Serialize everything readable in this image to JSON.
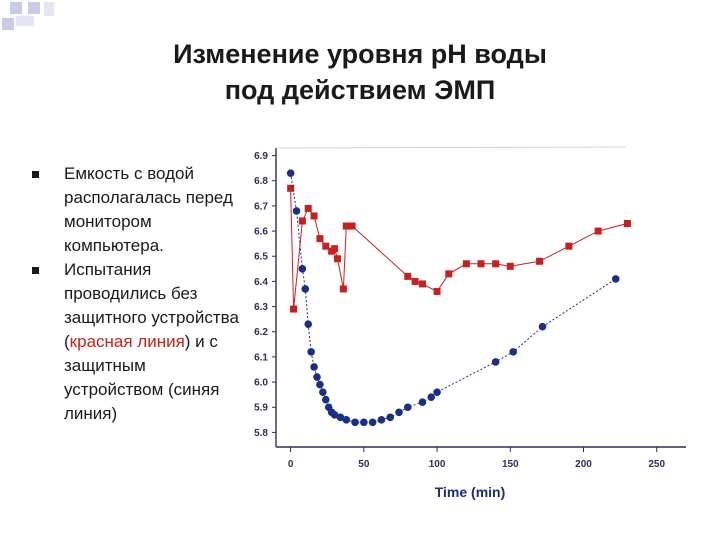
{
  "slide": {
    "title_line1": "Изменение уровня рН воды",
    "title_line2": "под действием ЭМП",
    "bullets": [
      {
        "text": "Емкость с водой располагалась перед монитором компьютера."
      },
      {
        "text_before": "Испытания проводились без защитного устройства (",
        "red_text": "красная линия",
        "text_after": ") и с защитным устройством (синяя линия)"
      }
    ],
    "colors": {
      "red_series": "#c8201e",
      "blue_series": "#1c2f86",
      "accent_text_red": "#cc1f1a"
    }
  },
  "chart_data": {
    "type": "line",
    "xlabel": "Time (min)",
    "ylabel": "",
    "xlim": [
      -10,
      270
    ],
    "ylim": [
      5.75,
      6.93
    ],
    "x_ticks": [
      0,
      50,
      100,
      150,
      200,
      250
    ],
    "y_ticks": [
      5.8,
      5.9,
      6.0,
      6.1,
      6.2,
      6.3,
      6.4,
      6.5,
      6.6,
      6.7,
      6.8,
      6.9
    ],
    "grid": false,
    "series": [
      {
        "color": "red",
        "marker": "square",
        "points": [
          [
            0,
            6.77
          ],
          [
            2,
            6.29
          ],
          [
            8,
            6.64
          ],
          [
            12,
            6.69
          ],
          [
            16,
            6.66
          ],
          [
            20,
            6.57
          ],
          [
            24,
            6.54
          ],
          [
            28,
            6.52
          ],
          [
            30,
            6.53
          ],
          [
            32,
            6.49
          ],
          [
            36,
            6.37
          ],
          [
            38,
            6.62
          ],
          [
            40,
            6.62
          ],
          [
            42,
            6.62
          ],
          [
            80,
            6.42
          ],
          [
            85,
            6.4
          ],
          [
            90,
            6.39
          ],
          [
            100,
            6.36
          ],
          [
            108,
            6.43
          ],
          [
            120,
            6.47
          ],
          [
            130,
            6.47
          ],
          [
            140,
            6.47
          ],
          [
            150,
            6.46
          ],
          [
            170,
            6.48
          ],
          [
            190,
            6.54
          ],
          [
            210,
            6.6
          ],
          [
            230,
            6.63
          ]
        ]
      },
      {
        "color": "blue",
        "marker": "circle",
        "points": [
          [
            0,
            6.83
          ],
          [
            4,
            6.68
          ],
          [
            8,
            6.45
          ],
          [
            10,
            6.37
          ],
          [
            12,
            6.23
          ],
          [
            14,
            6.12
          ],
          [
            16,
            6.06
          ],
          [
            18,
            6.02
          ],
          [
            20,
            5.99
          ],
          [
            22,
            5.96
          ],
          [
            24,
            5.93
          ],
          [
            26,
            5.9
          ],
          [
            28,
            5.88
          ],
          [
            30,
            5.87
          ],
          [
            34,
            5.86
          ],
          [
            38,
            5.85
          ],
          [
            44,
            5.84
          ],
          [
            50,
            5.84
          ],
          [
            56,
            5.84
          ],
          [
            62,
            5.85
          ],
          [
            68,
            5.86
          ],
          [
            74,
            5.88
          ],
          [
            80,
            5.9
          ],
          [
            90,
            5.92
          ],
          [
            96,
            5.94
          ],
          [
            100,
            5.96
          ],
          [
            140,
            6.08
          ],
          [
            152,
            6.12
          ],
          [
            172,
            6.22
          ],
          [
            222,
            6.41
          ]
        ]
      }
    ]
  }
}
